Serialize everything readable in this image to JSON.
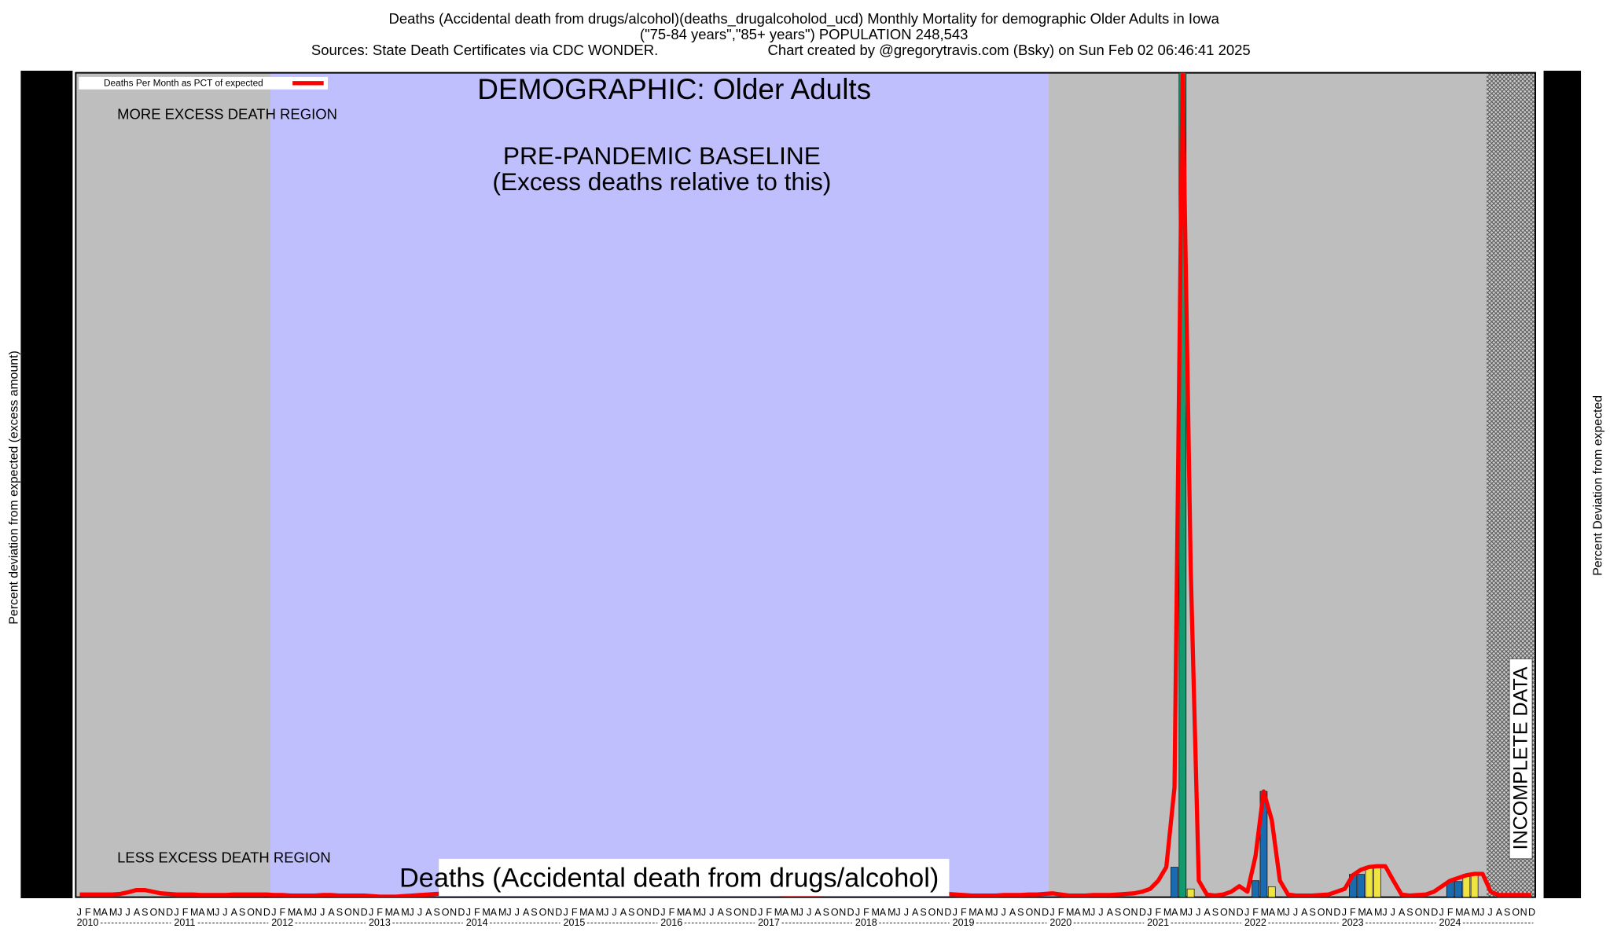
{
  "chart_data": {
    "type": "line",
    "title": "Deaths (Accidental death from drugs/alcohol)(deaths_drugalcoholod_ucd) Monthly Mortality for demographic Older Adults in Iowa",
    "subtitle": "(\"75-84 years\",\"85+ years\") POPULATION 248,543",
    "sources": "Sources: State Death Certificates via CDC WONDER.",
    "credit": "Chart created by @gregorytravis.com (Bsky) on Sun Feb 02 06:46:41 2025",
    "legend_label": "Deaths Per Month as PCT of expected",
    "demographic": "DEMOGRAPHIC: Older Adults",
    "more_region": "MORE EXCESS DEATH REGION",
    "less_region": "LESS EXCESS DEATH REGION",
    "baseline_label": "PRE-PANDEMIC BASELINE",
    "baseline_sub": "(Excess deaths relative to this)",
    "cause_label": "Deaths (Accidental death from drugs/alcohol)",
    "incomplete_label": "INCOMPLETE DATA",
    "ylabel": "Percent deviation from expected (excess amount)",
    "y2label": "Percent Deviation from expected",
    "month_labels": [
      "J",
      "F",
      "M",
      "A",
      "M",
      "J",
      "J",
      "A",
      "S",
      "O",
      "N",
      "D"
    ],
    "years": [
      2010,
      2011,
      2012,
      2013,
      2014,
      2015,
      2016,
      2017,
      2018,
      2019,
      2020,
      2021,
      2022,
      2023,
      2024
    ],
    "baseline_period": [
      "2012-01",
      "2020-01"
    ],
    "incomplete_from": "2024-07",
    "ylim": [
      0,
      3000
    ],
    "line_color": "#ff0000",
    "region_color": "#bebebe",
    "baseline_color": "#bfbffd",
    "series": [
      {
        "name": "Deaths Per Month as PCT of expected",
        "color": "#ff0000",
        "values": [
          10,
          10,
          10,
          10,
          10,
          12,
          18,
          26,
          26,
          20,
          14,
          12,
          10,
          10,
          10,
          8,
          8,
          8,
          8,
          10,
          10,
          10,
          10,
          10,
          8,
          8,
          6,
          6,
          6,
          6,
          8,
          8,
          6,
          6,
          6,
          6,
          4,
          2,
          2,
          2,
          4,
          6,
          8,
          10,
          12,
          14,
          14,
          14,
          12,
          12,
          12,
          12,
          12,
          12,
          12,
          12,
          12,
          12,
          12,
          12,
          12,
          12,
          12,
          12,
          12,
          12,
          12,
          12,
          12,
          12,
          12,
          12,
          12,
          12,
          12,
          12,
          12,
          12,
          12,
          12,
          12,
          12,
          12,
          12,
          12,
          12,
          12,
          10,
          10,
          10,
          10,
          10,
          12,
          12,
          12,
          12,
          12,
          12,
          12,
          12,
          12,
          12,
          12,
          12,
          12,
          12,
          12,
          12,
          10,
          8,
          6,
          6,
          6,
          6,
          8,
          8,
          8,
          10,
          10,
          12,
          14,
          10,
          6,
          6,
          6,
          8,
          8,
          8,
          10,
          12,
          14,
          20,
          30,
          60,
          110,
          400,
          3000,
          1200,
          60,
          10,
          6,
          10,
          20,
          40,
          20,
          150,
          385,
          280,
          60,
          10,
          6,
          6,
          6,
          8,
          10,
          20,
          30,
          80,
          100,
          110,
          113,
          113,
          60,
          10,
          6,
          8,
          10,
          20,
          40,
          60,
          70,
          80,
          85,
          85,
          20,
          8,
          8,
          8,
          8,
          8
        ]
      }
    ],
    "bars": {
      "x": [
        "2021-04",
        "2021-05",
        "2021-06",
        "2022-02",
        "2022-03",
        "2022-04",
        "2023-02",
        "2023-03",
        "2023-04",
        "2023-05",
        "2024-02",
        "2024-03",
        "2024-04",
        "2024-05"
      ],
      "values": [
        109,
        3000,
        30,
        60,
        385,
        38,
        83,
        83,
        113,
        113,
        57,
        57,
        83,
        83
      ],
      "colors": [
        "#1a6bb0",
        "#129a6e",
        "#f0e442",
        "#1a6bb0",
        "#1a6bb0",
        "#f0e442",
        "#1a6bb0",
        "#1a6bb0",
        "#f0e442",
        "#f0e442",
        "#1a6bb0",
        "#1a6bb0",
        "#f0e442",
        "#f0e442"
      ]
    }
  }
}
